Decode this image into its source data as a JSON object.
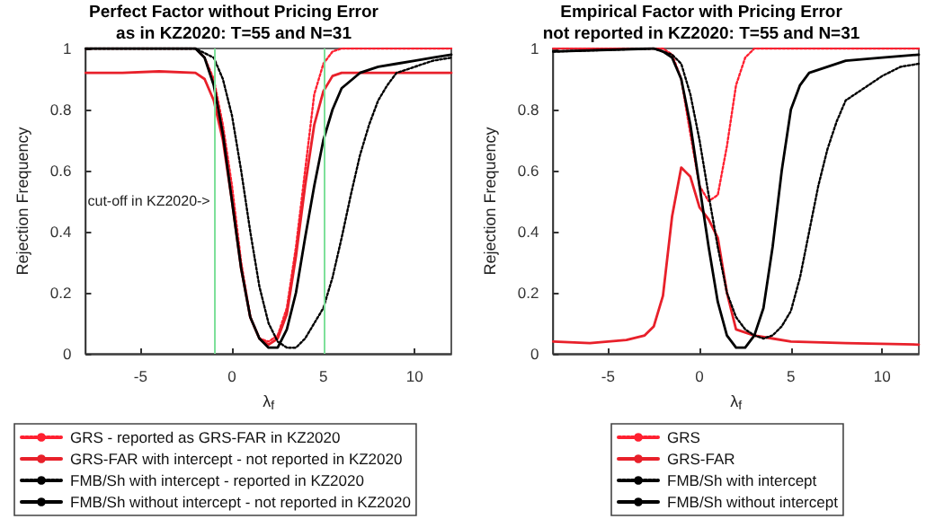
{
  "chart_data": [
    {
      "type": "line",
      "title": "Perfect Factor without Pricing Error\nas in KZ2020: T=55 and N=31",
      "xlabel": "λ$_{f}$",
      "ylabel": "Rejection Frequency",
      "xlim": [
        -8,
        12
      ],
      "ylim": [
        0,
        1
      ],
      "xticks": [
        -5,
        0,
        5,
        10
      ],
      "yticks": [
        0,
        0.2,
        0.4,
        0.6,
        0.8,
        1
      ],
      "grid": false,
      "legend": "bottom",
      "marker": "none",
      "ref_lines": [
        {
          "axis": "x",
          "value": -1,
          "color": "#7ee09a"
        },
        {
          "axis": "x",
          "value": 5,
          "color": "#7ee09a"
        }
      ],
      "annotations": [
        {
          "text": "cut-off in KZ2020->",
          "x": -1,
          "y": 0.5
        }
      ],
      "series": [
        {
          "name": "GRS - reported as GRS-FAR in KZ2020",
          "color": "#ff2030",
          "line_style": "dotted",
          "x": [
            -8,
            -2,
            -1.5,
            -1,
            -0.5,
            0,
            0.5,
            1,
            1.5,
            2,
            2.5,
            3,
            3.5,
            4,
            4.5,
            5,
            5.5,
            6,
            12
          ],
          "values": [
            1,
            1,
            0.97,
            0.9,
            0.75,
            0.55,
            0.3,
            0.12,
            0.05,
            0.04,
            0.06,
            0.15,
            0.35,
            0.6,
            0.85,
            0.95,
            0.99,
            1,
            1
          ]
        },
        {
          "name": "GRS-FAR with intercept - not reported in KZ2020",
          "color": "#e8202a",
          "line_style": "solid",
          "x": [
            -8,
            -6,
            -4,
            -2,
            -1.5,
            -1,
            -0.5,
            0,
            0.5,
            1,
            1.5,
            2,
            2.5,
            3,
            3.5,
            4,
            4.5,
            5,
            5.5,
            6,
            9,
            12
          ],
          "values": [
            0.92,
            0.92,
            0.925,
            0.92,
            0.9,
            0.83,
            0.7,
            0.5,
            0.28,
            0.12,
            0.05,
            0.03,
            0.05,
            0.13,
            0.32,
            0.55,
            0.75,
            0.86,
            0.91,
            0.92,
            0.92,
            0.92
          ]
        },
        {
          "name": "FMB/Sh with intercept - reported in KZ2020",
          "color": "#000000",
          "line_style": "dotted",
          "x": [
            -8,
            -2,
            -1,
            -0.5,
            0,
            0.5,
            1,
            1.5,
            2,
            2.5,
            3,
            3.5,
            4,
            4.5,
            5,
            5.5,
            6,
            6.5,
            7,
            7.5,
            8,
            8.5,
            9,
            10,
            11,
            12
          ],
          "values": [
            1,
            1,
            0.97,
            0.9,
            0.78,
            0.6,
            0.4,
            0.22,
            0.1,
            0.04,
            0.02,
            0.02,
            0.05,
            0.1,
            0.15,
            0.25,
            0.38,
            0.52,
            0.65,
            0.75,
            0.83,
            0.88,
            0.92,
            0.94,
            0.96,
            0.97
          ]
        },
        {
          "name": "FMB/Sh without intercept - not reported in KZ2020",
          "color": "#000000",
          "line_style": "solid",
          "x": [
            -8,
            -2,
            -1.5,
            -1,
            -0.5,
            0,
            0.5,
            1,
            1.5,
            2,
            2.5,
            3,
            3.5,
            4,
            4.5,
            5,
            5.5,
            6,
            7,
            8,
            9,
            10,
            11,
            12
          ],
          "values": [
            1,
            1,
            0.97,
            0.88,
            0.72,
            0.5,
            0.28,
            0.12,
            0.05,
            0.02,
            0.02,
            0.08,
            0.2,
            0.38,
            0.55,
            0.7,
            0.8,
            0.87,
            0.92,
            0.94,
            0.95,
            0.96,
            0.97,
            0.98
          ]
        }
      ]
    },
    {
      "type": "line",
      "title": "Empirical Factor with Pricing Error\nnot reported in KZ2020: T=55 and N=31",
      "xlabel": "λ$_{f}$",
      "ylabel": "Rejection Frequency",
      "xlim": [
        -8,
        12
      ],
      "ylim": [
        0,
        1
      ],
      "xticks": [
        -5,
        0,
        5,
        10
      ],
      "yticks": [
        0,
        0.2,
        0.4,
        0.6,
        0.8,
        1
      ],
      "grid": false,
      "legend": "bottom",
      "marker": "none",
      "series": [
        {
          "name": "GRS",
          "color": "#ff2030",
          "line_style": "dotted",
          "x": [
            -8,
            -2,
            -1.5,
            -1,
            -0.5,
            0,
            0.5,
            1,
            1.5,
            2,
            2.5,
            3,
            12
          ],
          "values": [
            1,
            1,
            0.98,
            0.9,
            0.72,
            0.55,
            0.5,
            0.52,
            0.68,
            0.88,
            0.97,
            1,
            1
          ]
        },
        {
          "name": "GRS-FAR",
          "color": "#e8202a",
          "line_style": "solid",
          "x": [
            -8,
            -6,
            -4,
            -3,
            -2.5,
            -2,
            -1.5,
            -1,
            -0.5,
            0,
            0.5,
            1,
            1.5,
            2,
            3,
            4,
            5,
            8,
            12
          ],
          "values": [
            0.04,
            0.035,
            0.045,
            0.06,
            0.09,
            0.19,
            0.45,
            0.61,
            0.58,
            0.48,
            0.44,
            0.38,
            0.2,
            0.08,
            0.06,
            0.05,
            0.04,
            0.035,
            0.03
          ]
        },
        {
          "name": "FMB/Sh with intercept",
          "color": "#000000",
          "line_style": "dotted",
          "x": [
            -8,
            -2.5,
            -1.5,
            -1,
            -0.5,
            0,
            0.5,
            1,
            1.5,
            2,
            2.5,
            3,
            3.5,
            4,
            4.5,
            5,
            5.5,
            6,
            6.5,
            7,
            7.5,
            8,
            9,
            10,
            11,
            12
          ],
          "values": [
            0.99,
            1,
            0.98,
            0.95,
            0.85,
            0.7,
            0.52,
            0.35,
            0.2,
            0.12,
            0.08,
            0.06,
            0.05,
            0.06,
            0.09,
            0.14,
            0.25,
            0.4,
            0.55,
            0.67,
            0.76,
            0.83,
            0.87,
            0.91,
            0.94,
            0.95
          ]
        },
        {
          "name": "FMB/Sh without intercept",
          "color": "#000000",
          "line_style": "solid",
          "x": [
            -8,
            -2.5,
            -2,
            -1.5,
            -1,
            -0.5,
            0,
            0.5,
            1,
            1.5,
            2,
            2.5,
            3,
            3.5,
            4,
            4.5,
            5,
            5.5,
            6,
            7,
            8,
            10,
            12
          ],
          "values": [
            0.99,
            1,
            0.99,
            0.97,
            0.9,
            0.75,
            0.55,
            0.35,
            0.17,
            0.06,
            0.02,
            0.02,
            0.06,
            0.15,
            0.35,
            0.6,
            0.8,
            0.88,
            0.92,
            0.94,
            0.96,
            0.97,
            0.98
          ]
        }
      ]
    }
  ]
}
